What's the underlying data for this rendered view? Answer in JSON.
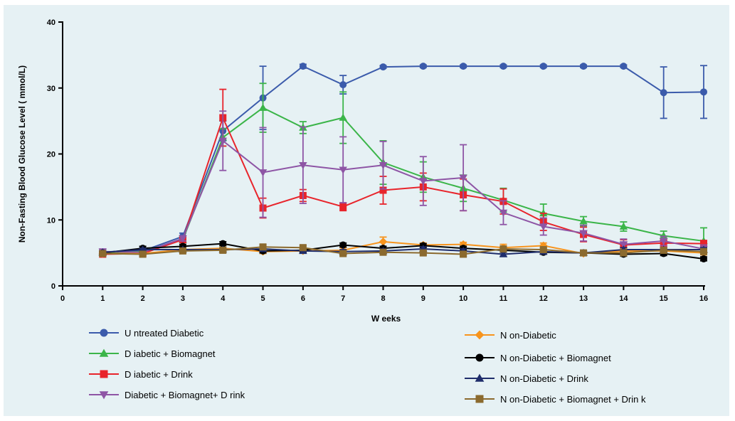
{
  "chart_data": {
    "type": "line",
    "xlabel": "W eeks",
    "ylabel": "Non-Fasting Blood Glucose Level ( mmol/L)",
    "xlim": [
      0,
      16
    ],
    "ylim": [
      0,
      40
    ],
    "x_ticks": [
      "0",
      "1",
      "2",
      "3",
      "4",
      "5",
      "6",
      "7",
      "8",
      "9",
      "10",
      "11",
      "12",
      "13",
      "14",
      "15",
      "16"
    ],
    "y_ticks": [
      "0",
      "10",
      "20",
      "30",
      "40"
    ],
    "x": [
      1,
      2,
      3,
      4,
      5,
      6,
      7,
      8,
      9,
      10,
      11,
      12,
      13,
      14,
      15,
      16
    ],
    "grid": false,
    "legend_position": "bottom",
    "series": [
      {
        "name": "U ntreated Diabetic",
        "color": "#3b5bab",
        "marker": "circle",
        "values": [
          5.0,
          5.3,
          7.5,
          23.5,
          28.5,
          33.3,
          30.5,
          33.2,
          33.3,
          33.3,
          33.3,
          33.3,
          33.3,
          33.3,
          29.3,
          29.4
        ],
        "err": [
          0.4,
          0.4,
          0.5,
          1.5,
          4.8,
          0.3,
          1.4,
          0.2,
          0.2,
          0.2,
          0.2,
          0.2,
          0.2,
          0.2,
          3.9,
          4.0
        ]
      },
      {
        "name": "D iabetic + Biomagnet",
        "color": "#3bb549",
        "marker": "triangle-up",
        "values": [
          5.0,
          5.2,
          7.0,
          22.5,
          27.0,
          24.0,
          25.5,
          18.7,
          16.5,
          14.8,
          13.0,
          11.0,
          9.8,
          9.0,
          7.6,
          6.8
        ],
        "err": [
          0.3,
          0.4,
          0.4,
          1.3,
          3.7,
          0.9,
          3.9,
          3.3,
          2.3,
          2.0,
          1.8,
          1.4,
          0.7,
          0.7,
          0.7,
          2.0
        ]
      },
      {
        "name": "D iabetic + Drink",
        "color": "#e8242b",
        "marker": "square",
        "values": [
          4.8,
          4.9,
          7.0,
          25.5,
          11.8,
          13.7,
          12.0,
          14.5,
          15.0,
          13.8,
          12.8,
          9.7,
          7.8,
          6.2,
          6.5,
          6.4
        ],
        "err": [
          0.3,
          0.4,
          0.4,
          4.3,
          1.5,
          0.9,
          0.6,
          2.1,
          2.1,
          2.4,
          1.9,
          1.3,
          1.1,
          0.8,
          0.6,
          0.5
        ]
      },
      {
        "name": "Diabetic + Biomagnet+ D rink",
        "color": "#8e55a5",
        "marker": "triangle-down",
        "values": [
          5.2,
          5.1,
          7.2,
          22.0,
          17.2,
          18.3,
          17.6,
          18.3,
          15.9,
          16.4,
          11.1,
          9.0,
          8.0,
          6.3,
          6.8,
          5.6
        ],
        "err": [
          0.4,
          0.4,
          0.4,
          4.5,
          6.8,
          5.8,
          5.0,
          3.6,
          3.7,
          5.0,
          1.8,
          1.3,
          1.2,
          0.8,
          0.7,
          0.6
        ]
      },
      {
        "name": "N on-Diabetic",
        "color": "#f7941d",
        "marker": "diamond",
        "values": [
          4.9,
          4.9,
          5.5,
          5.7,
          5.2,
          5.3,
          5.4,
          6.7,
          6.2,
          6.3,
          5.8,
          6.1,
          4.9,
          5.3,
          5.3,
          5.0
        ],
        "err": [
          0.2,
          0.2,
          0.3,
          0.4,
          0.3,
          0.3,
          0.4,
          0.7,
          0.3,
          0.3,
          0.5,
          0.4,
          0.3,
          0.3,
          0.3,
          0.3
        ]
      },
      {
        "name": "N on-Diabetic + Biomagnet",
        "color": "#000000",
        "marker": "circle",
        "values": [
          5.0,
          5.7,
          6.0,
          6.4,
          5.3,
          5.4,
          6.2,
          5.7,
          6.1,
          5.7,
          5.4,
          5.1,
          5.0,
          4.8,
          4.9,
          4.1
        ],
        "err": [
          0.2,
          0.3,
          0.3,
          0.3,
          0.3,
          0.3,
          0.3,
          0.3,
          0.3,
          0.3,
          0.3,
          0.3,
          0.3,
          0.3,
          0.3,
          0.3
        ]
      },
      {
        "name": "N on-Diabetic + Drink",
        "color": "#1f2d6b",
        "marker": "triangle-up",
        "values": [
          5.1,
          5.5,
          5.5,
          5.5,
          5.6,
          5.3,
          5.2,
          5.3,
          5.6,
          5.3,
          4.8,
          5.2,
          5.0,
          5.5,
          5.5,
          5.5
        ],
        "err": [
          0.2,
          0.2,
          0.2,
          0.2,
          0.3,
          0.3,
          0.3,
          0.3,
          0.3,
          0.3,
          0.3,
          0.3,
          0.3,
          0.3,
          0.3,
          0.3
        ]
      },
      {
        "name": "N on-Diabetic + Biomagnet + Drin k",
        "color": "#8b6a2e",
        "marker": "square",
        "values": [
          4.9,
          4.8,
          5.3,
          5.4,
          5.9,
          5.8,
          4.9,
          5.1,
          5.0,
          4.8,
          5.6,
          5.5,
          5.0,
          5.0,
          5.4,
          5.2
        ],
        "err": [
          0.2,
          0.2,
          0.2,
          0.2,
          0.3,
          0.3,
          0.3,
          0.3,
          0.3,
          0.3,
          0.3,
          0.3,
          0.3,
          0.3,
          0.3,
          0.3
        ]
      }
    ]
  }
}
